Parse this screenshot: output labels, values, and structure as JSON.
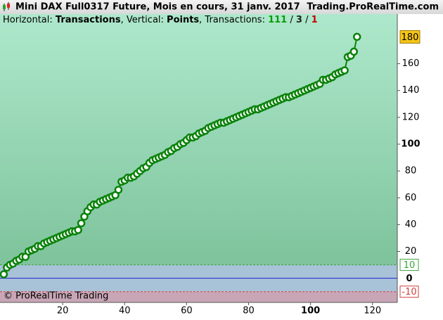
{
  "chart_data": {
    "type": "line",
    "title": "Mini DAX Full0317 Future, Mois en cours, 31 janv. 2017",
    "site": "Trading.ProRealTime.com",
    "subtitle": [
      {
        "text": "Horizontal: "
      },
      {
        "text": "Transactions",
        "bold": true
      },
      {
        "text": ", Vertical: "
      },
      {
        "text": "Points",
        "bold": true
      },
      {
        "text": ", Transactions: "
      }
    ],
    "transaction_counts": [
      {
        "value": 111,
        "color": "#0a9a0a"
      },
      {
        "value": 3,
        "color": "#222222"
      },
      {
        "value": 1,
        "color": "#c00000"
      }
    ],
    "count_separator": " / ",
    "footer": "© ProRealTime Trading",
    "x": [
      1,
      2,
      3,
      4,
      5,
      6,
      7,
      8,
      9,
      10,
      11,
      12,
      13,
      14,
      15,
      16,
      17,
      18,
      19,
      20,
      21,
      22,
      23,
      24,
      25,
      26,
      27,
      28,
      29,
      30,
      31,
      32,
      33,
      34,
      35,
      36,
      37,
      38,
      39,
      40,
      41,
      42,
      43,
      44,
      45,
      46,
      47,
      48,
      49,
      50,
      51,
      52,
      53,
      54,
      55,
      56,
      57,
      58,
      59,
      60,
      61,
      62,
      63,
      64,
      65,
      66,
      67,
      68,
      69,
      70,
      71,
      72,
      73,
      74,
      75,
      76,
      77,
      78,
      79,
      80,
      81,
      82,
      83,
      84,
      85,
      86,
      87,
      88,
      89,
      90,
      91,
      92,
      93,
      94,
      95,
      96,
      97,
      98,
      99,
      100,
      101,
      102,
      103,
      104,
      105,
      106,
      107,
      108,
      109,
      110,
      111,
      112,
      113,
      114,
      115
    ],
    "series": [
      {
        "color": "#0a820a",
        "values": [
          3,
          8,
          10,
          11,
          13,
          14,
          16,
          16,
          20,
          21,
          22,
          24,
          24,
          26,
          27,
          28,
          29,
          30,
          31,
          32,
          33,
          34,
          35,
          35,
          36,
          41,
          46,
          50,
          53,
          55,
          55,
          57,
          58,
          59,
          60,
          61,
          62,
          66,
          72,
          73,
          75,
          75,
          76,
          78,
          80,
          82,
          83,
          86,
          88,
          89,
          90,
          91,
          92,
          94,
          95,
          97,
          98,
          100,
          101,
          103,
          105,
          105,
          106,
          108,
          109,
          110,
          112,
          113,
          114,
          115,
          116,
          116,
          117,
          118,
          119,
          120,
          121,
          122,
          123,
          124,
          125,
          126,
          126,
          127,
          128,
          129,
          130,
          131,
          132,
          133,
          134,
          135,
          135,
          136,
          137,
          138,
          139,
          140,
          141,
          142,
          143,
          144,
          145,
          148,
          148,
          149,
          150,
          152,
          153,
          154,
          155,
          165,
          166,
          169,
          180
        ]
      }
    ],
    "xlim": [
      0,
      128
    ],
    "ylim": [
      -18,
      197
    ],
    "xticks": [
      20,
      40,
      60,
      80,
      100,
      120
    ],
    "yticks": [
      20,
      40,
      60,
      80,
      100,
      120,
      140,
      160
    ],
    "bold_ticks": [
      100
    ],
    "hlines": [
      {
        "value": 10,
        "color": "#3aa33a",
        "dashed": true
      },
      {
        "value": 0,
        "color": "#2020d0",
        "dashed": false
      },
      {
        "value": -10,
        "color": "#d04040",
        "dashed": true
      }
    ]
  }
}
